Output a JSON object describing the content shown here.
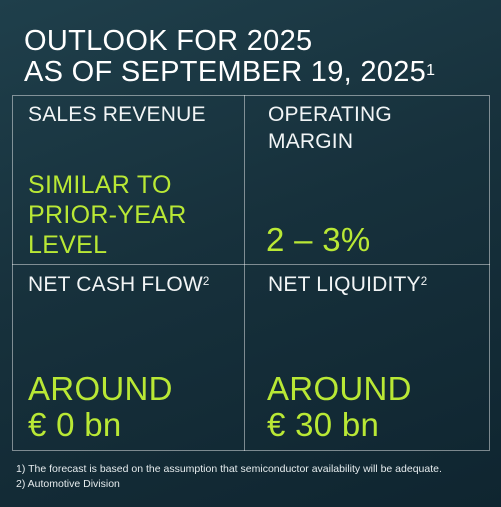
{
  "title": {
    "line1": "OUTLOOK FOR 2025",
    "line2": "AS OF SEPTEMBER 19, 2025",
    "line2_sup": "1"
  },
  "cells": {
    "sales_revenue": {
      "label": "SALES REVENUE",
      "value_line1": "SIMILAR TO",
      "value_line2": "PRIOR-YEAR",
      "value_line3": "LEVEL"
    },
    "operating_margin": {
      "label_line1": "OPERATING",
      "label_line2": "MARGIN",
      "value": "2 – 3%"
    },
    "net_cash_flow": {
      "label": "NET CASH FLOW",
      "label_sup": "2",
      "value_line1": "AROUND",
      "value_line2": "€ 0 bn"
    },
    "net_liquidity": {
      "label": "NET LIQUIDITY",
      "label_sup": "2",
      "value_line1": "AROUND",
      "value_line2": "€ 30 bn"
    }
  },
  "footnotes": [
    "1) The forecast is based on the assumption that semiconductor availability will be adequate.",
    "2) Automotive Division"
  ],
  "colors": {
    "background": "#17313c",
    "accent_green": "#b9e835",
    "grid_line": "#8fa0a6"
  }
}
